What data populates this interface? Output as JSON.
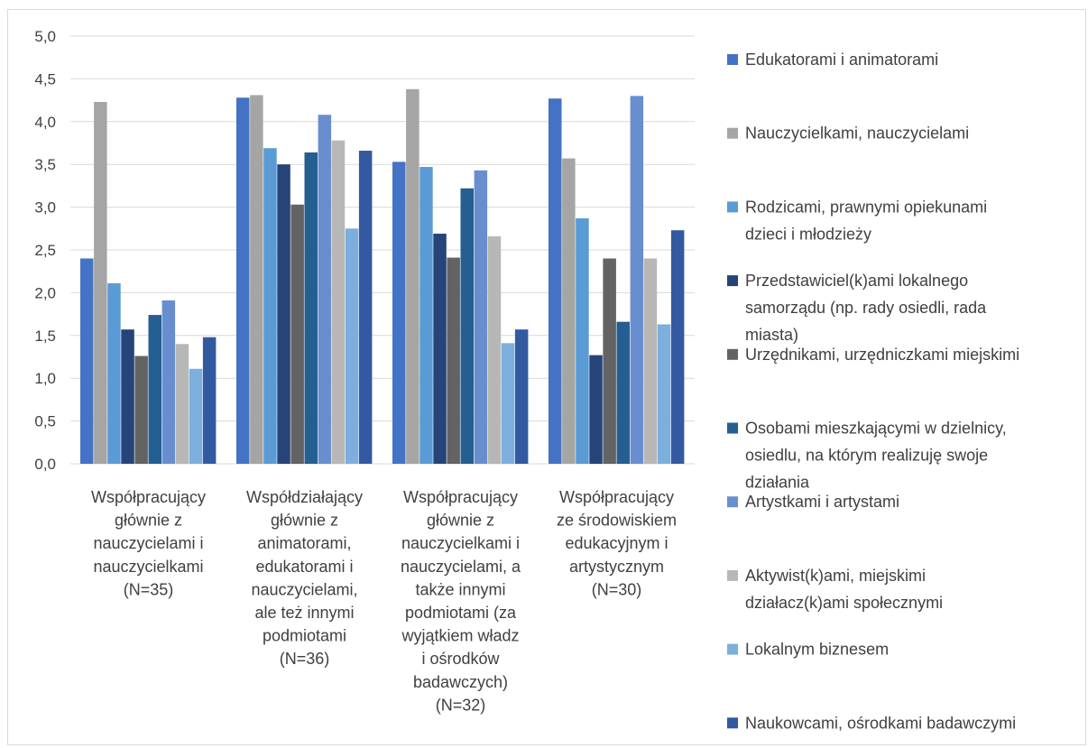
{
  "chart_data": {
    "type": "bar",
    "title": "",
    "xlabel": "",
    "ylabel": "",
    "ylim": [
      0,
      5
    ],
    "yticks": [
      "0,0",
      "0,5",
      "1,0",
      "1,5",
      "2,0",
      "2,5",
      "3,0",
      "3,5",
      "4,0",
      "4,5",
      "5,0"
    ],
    "grid": true,
    "legend_position": "right",
    "categories": [
      [
        "Współpracujący",
        "głównie z",
        "nauczycielami i",
        "nauczycielkami",
        "(N=35)"
      ],
      [
        "Współdziałający",
        "głównie z",
        "animatorami,",
        "edukatorami i",
        "nauczycielami,",
        "ale też innymi",
        "podmiotami",
        "(N=36)"
      ],
      [
        "Współpracujący",
        "głównie z",
        "nauczycielkami i",
        "nauczycielami, a",
        "także innymi",
        "podmiotami (za",
        "wyjątkiem władz",
        "i ośrodków",
        "badawczych)",
        "(N=32)"
      ],
      [
        "Współpracujący",
        "ze środowiskiem",
        "edukacyjnym i",
        "artystycznym",
        "(N=30)"
      ]
    ],
    "series": [
      {
        "name": [
          "Edukatorami i animatorami"
        ],
        "color": "#4472c4",
        "values": [
          2.4,
          4.28,
          3.53,
          4.27
        ]
      },
      {
        "name": [
          "Nauczycielkami, nauczycielami"
        ],
        "color": "#a5a5a5",
        "values": [
          4.23,
          4.31,
          4.38,
          3.57
        ]
      },
      {
        "name": [
          "Rodzicami, prawnymi opiekunami",
          "dzieci i młodzieży"
        ],
        "color": "#5b9bd5",
        "values": [
          2.11,
          3.69,
          3.47,
          2.87
        ]
      },
      {
        "name": [
          "Przedstawiciel(k)ami lokalnego",
          "samorządu (np. rady osiedli, rada",
          "miasta)"
        ],
        "color": "#264478",
        "values": [
          1.57,
          3.5,
          2.69,
          1.27
        ]
      },
      {
        "name": [
          "Urzędnikami, urzędniczkami miejskimi"
        ],
        "color": "#636363",
        "values": [
          1.26,
          3.03,
          2.41,
          2.4
        ]
      },
      {
        "name": [
          "Osobami mieszkającymi w dzielnicy,",
          "osiedlu, na którym realizuję swoje",
          "działania"
        ],
        "color": "#255e91",
        "values": [
          1.74,
          3.64,
          3.22,
          1.66
        ]
      },
      {
        "name": [
          "Artystkami i artystami"
        ],
        "color": "#698ed0",
        "values": [
          1.91,
          4.08,
          3.43,
          4.3
        ]
      },
      {
        "name": [
          "Aktywist(k)ami, miejskimi",
          "działacz(k)ami społecznymi"
        ],
        "color": "#b7b7b7",
        "values": [
          1.4,
          3.78,
          2.66,
          2.4
        ]
      },
      {
        "name": [
          "Lokalnym biznesem"
        ],
        "color": "#7cafdd",
        "values": [
          1.11,
          2.75,
          1.41,
          1.63
        ]
      },
      {
        "name": [
          "Naukowcami, ośrodkami badawczymi"
        ],
        "color": "#335aa1",
        "values": [
          1.48,
          3.66,
          1.57,
          2.73
        ]
      }
    ]
  }
}
